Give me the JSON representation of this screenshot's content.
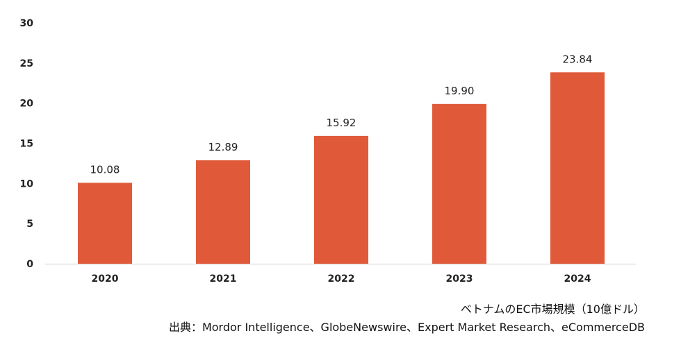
{
  "chart_data": {
    "type": "bar",
    "categories": [
      "2020",
      "2021",
      "2022",
      "2023",
      "2024"
    ],
    "values": [
      10.08,
      12.89,
      15.92,
      19.9,
      23.84
    ],
    "data_labels": [
      "10.08",
      "12.89",
      "15.92",
      "19.90",
      "23.84"
    ],
    "yticks": [
      0,
      5,
      10,
      15,
      20,
      25,
      30
    ],
    "ylim": [
      0,
      30
    ],
    "title": "",
    "xlabel": "",
    "ylabel": "",
    "grid": false,
    "bar_color": "#e05a3a"
  },
  "caption": {
    "title": "ベトナムのEC市場規模（10億ドル）",
    "source": "出典：Mordor Intelligence、GlobeNewswire、Expert Market Research、eCommerceDB"
  }
}
